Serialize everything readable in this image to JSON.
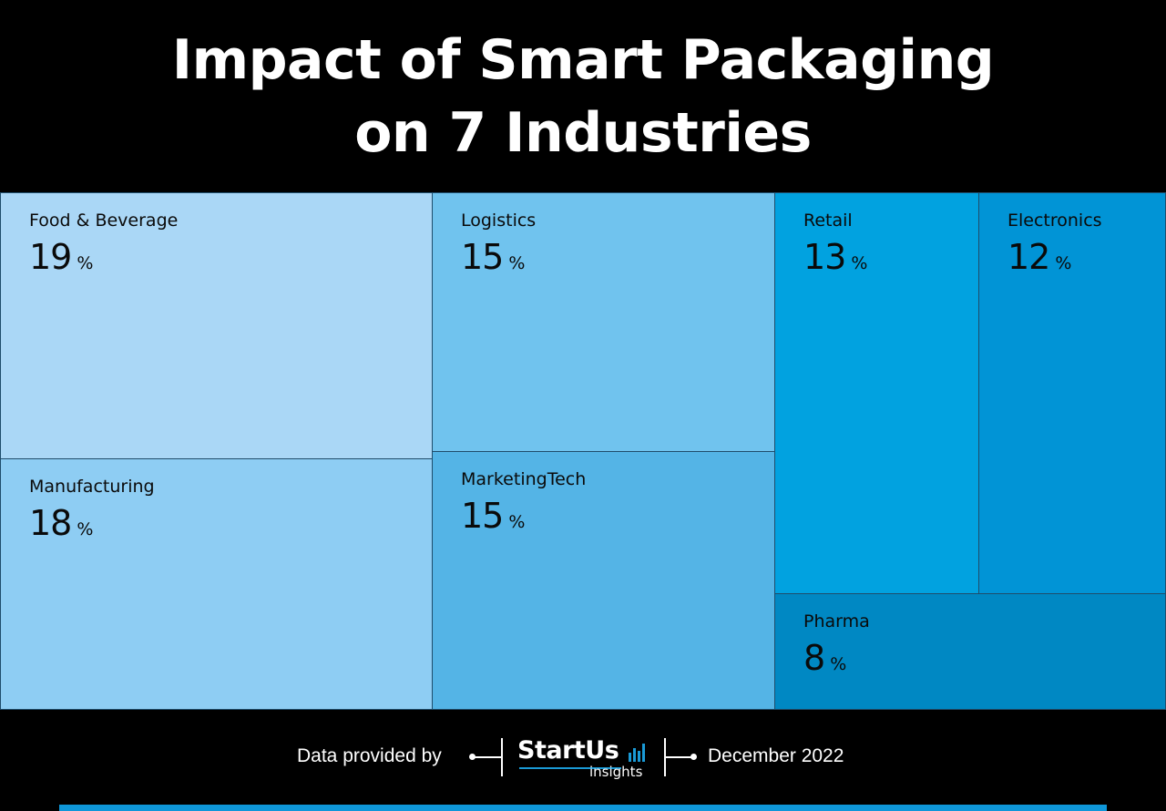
{
  "title": {
    "line1": "Impact of Smart Packaging",
    "line2": "on 7 Industries"
  },
  "chart_data": {
    "type": "treemap",
    "unit": "%",
    "items": [
      {
        "label": "Food & Beverage",
        "value": 19,
        "color": "#aad7f6"
      },
      {
        "label": "Manufacturing",
        "value": 18,
        "color": "#8ecdf3"
      },
      {
        "label": "Logistics",
        "value": 15,
        "color": "#70c3ee"
      },
      {
        "label": "MarketingTech",
        "value": 15,
        "color": "#54b4e6"
      },
      {
        "label": "Retail",
        "value": 13,
        "color": "#01a2e0"
      },
      {
        "label": "Electronics",
        "value": 12,
        "color": "#0194d6"
      },
      {
        "label": "Pharma",
        "value": 8,
        "color": "#0088c3"
      }
    ]
  },
  "footer": {
    "credit": "Data provided by",
    "logo_main": "StartUs",
    "logo_sub": "insights",
    "date": "December 2022"
  },
  "colors": {
    "background": "#000000",
    "accent_bar": "#0f97d9"
  }
}
